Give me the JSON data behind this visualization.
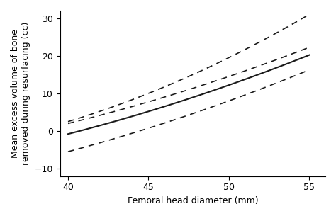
{
  "x_start": 40,
  "x_end": 55,
  "xlabel": "Femoral head diameter (mm)",
  "ylabel": "Mean excess volume of bone\nremoved during resurfacing (cc)",
  "xlim": [
    39.5,
    56
  ],
  "ylim": [
    -12,
    32
  ],
  "xticks": [
    40,
    45,
    50,
    55
  ],
  "yticks": [
    -10,
    0,
    10,
    20,
    30
  ],
  "solid_line": {
    "a": 0.02,
    "b": 1.1,
    "c": -0.8,
    "color": "#1a1a1a",
    "linewidth": 1.5
  },
  "dashed_upper_outer": {
    "a": 0.04,
    "b": 1.3,
    "c": 2.5,
    "color": "#1a1a1a",
    "linewidth": 1.2
  },
  "dashed_upper_inner": {
    "a": 0.02,
    "b": 1.05,
    "c": 2.0,
    "color": "#1a1a1a",
    "linewidth": 1.2
  },
  "dashed_lower": {
    "a": 0.02,
    "b": 1.15,
    "c": -5.5,
    "color": "#1a1a1a",
    "linewidth": 1.2
  },
  "background_color": "#ffffff",
  "spine_color": "#000000",
  "font_size_label": 9,
  "font_size_tick": 9
}
